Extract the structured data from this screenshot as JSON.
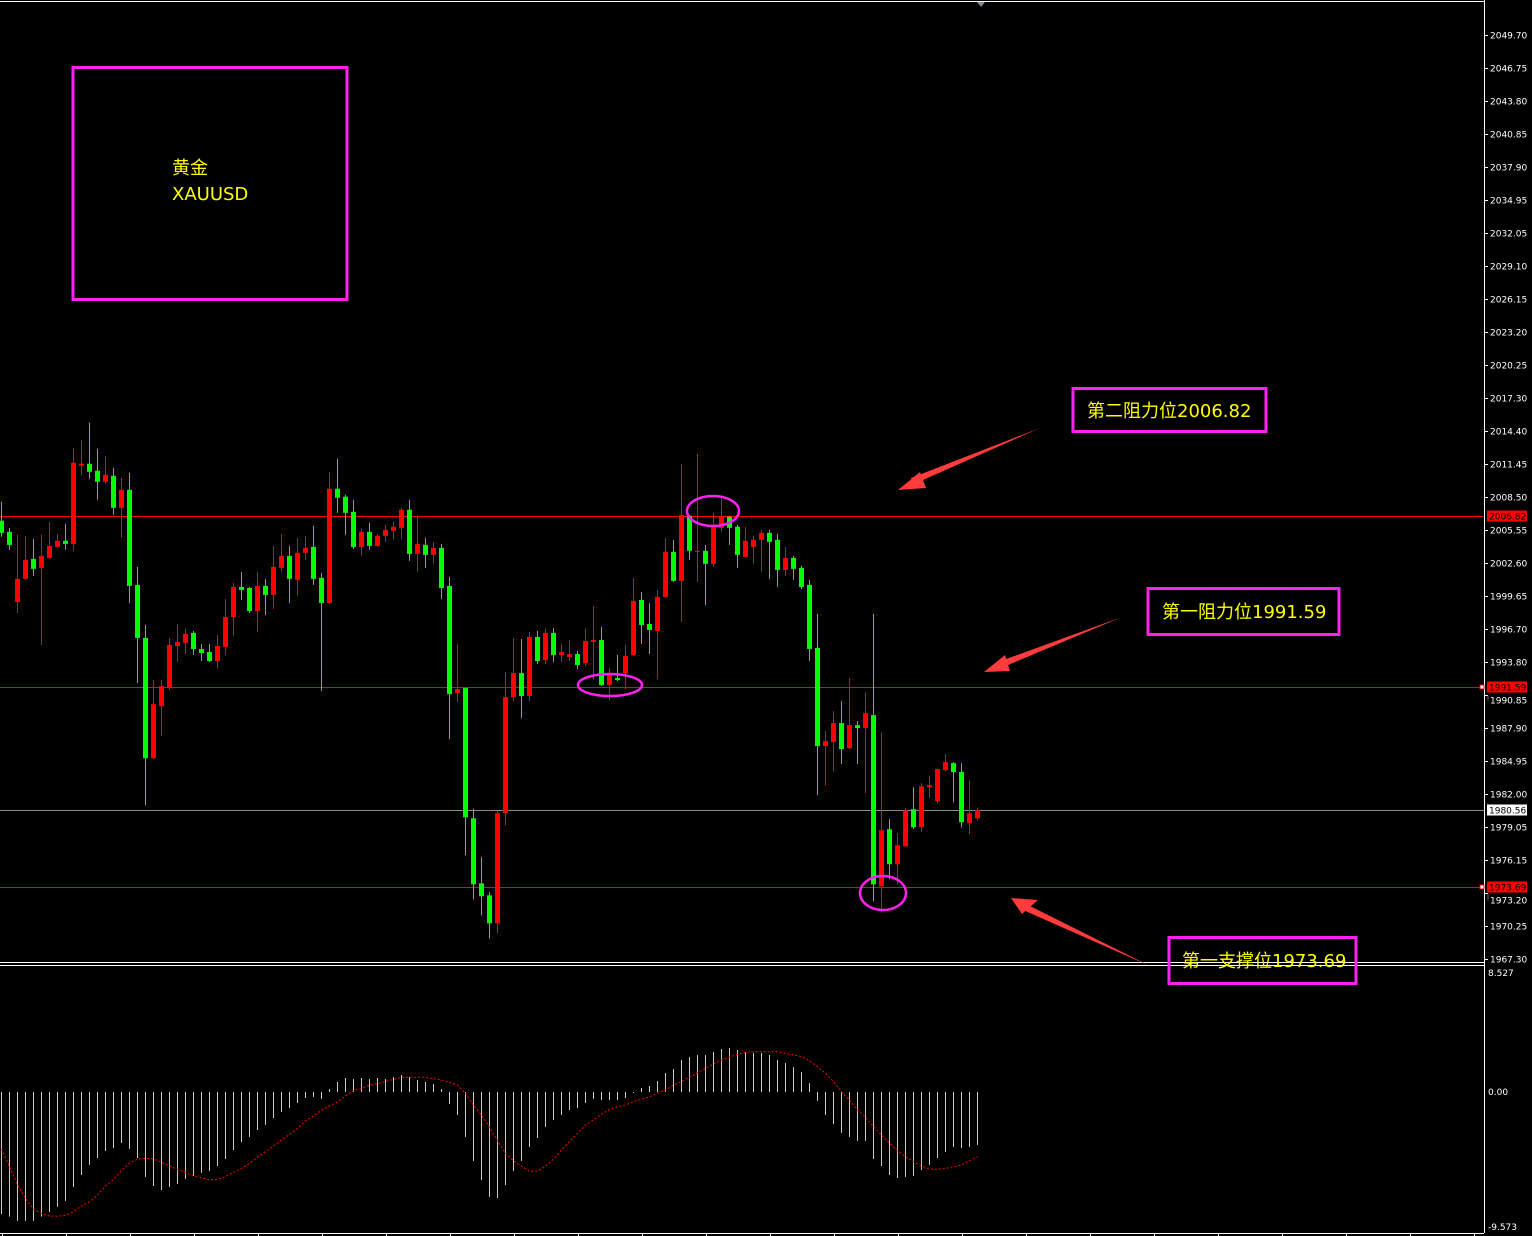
{
  "symbol_box": {
    "line1": "黄金",
    "line2": "XAUUSD"
  },
  "annotations": {
    "resistance2": "第二阻力位2006.82",
    "resistance1": "第一阻力位1991.59",
    "support1": "第一支撑位1973.69"
  },
  "colors": {
    "background": "#000000",
    "bull_candle": "#ff0000",
    "bear_candle": "#00ff00",
    "level_line": "#ff0000",
    "annotation_border": "#ff22ee",
    "annotation_text": "#ffff00",
    "arrow": "#ff3b3b",
    "macd_histogram": "#c8c8c8",
    "macd_signal": "#ff0000"
  },
  "chart_data": {
    "type": "candlestick",
    "symbol": "XAUUSD",
    "ylim": [
      1967.3,
      2049.7
    ],
    "y_ticks": [
      "2049.70",
      "2046.75",
      "2043.80",
      "2040.85",
      "2037.90",
      "2034.95",
      "2032.05",
      "2029.10",
      "2026.15",
      "2023.20",
      "2020.25",
      "2017.30",
      "2014.40",
      "2011.45",
      "2008.50",
      "2005.55",
      "2002.60",
      "1999.65",
      "1996.70",
      "1993.80",
      "1990.85",
      "1987.90",
      "1984.95",
      "1982.00",
      "1979.05",
      "1976.15",
      "1973.20",
      "1970.25",
      "1967.30"
    ],
    "levels": [
      {
        "price": 2006.82,
        "label": "2006.82",
        "kind": "resistance"
      },
      {
        "price": 1991.59,
        "label": "1991.59",
        "kind": "resistance"
      },
      {
        "price": 1980.56,
        "label": "1980.56",
        "kind": "bid"
      },
      {
        "price": 1973.69,
        "label": "1973.69",
        "kind": "support"
      }
    ],
    "ohlc": [
      [
        2006.38,
        2008.07,
        2004.95,
        2005.3
      ],
      [
        2005.39,
        2005.75,
        2003.79,
        2004.23
      ],
      [
        1999.14,
        2005.13,
        1998.16,
        2001.2
      ],
      [
        2001.2,
        2005.04,
        2001.11,
        2002.89
      ],
      [
        2002.98,
        2004.77,
        2001.46,
        2002.09
      ],
      [
        2002.18,
        2005.13,
        1995.3,
        2003.25
      ],
      [
        2003.07,
        2006.29,
        2002.98,
        2004.14
      ],
      [
        2004.05,
        2005.21,
        2003.96,
        2004.59
      ],
      [
        2004.59,
        2006.11,
        2003.79,
        2004.32
      ],
      [
        2004.32,
        2012.89,
        2003.7,
        2011.55
      ],
      [
        2011.29,
        2013.61,
        2010.48,
        2011.47
      ],
      [
        2011.47,
        2015.13,
        2010.13,
        2010.75
      ],
      [
        2010.84,
        2012.81,
        2008.25,
        2009.86
      ],
      [
        2009.86,
        2012.18,
        2009.68,
        2010.48
      ],
      [
        2010.39,
        2011.11,
        2006.91,
        2007.54
      ],
      [
        2007.54,
        2010.22,
        2004.86,
        2009.14
      ],
      [
        2009.14,
        2010.66,
        1999.05,
        2000.57
      ],
      [
        2000.66,
        2002.27,
        1991.91,
        1995.93
      ],
      [
        1995.93,
        1997.09,
        1981.01,
        1985.21
      ],
      [
        1985.21,
        1992.18,
        1985.12,
        1990.03
      ],
      [
        1989.85,
        1992.18,
        1987.18,
        1991.64
      ],
      [
        1991.46,
        1995.93,
        1991.28,
        1995.3
      ],
      [
        1995.21,
        1997.18,
        1993.79,
        1995.57
      ],
      [
        1995.48,
        1996.73,
        1994.5,
        1996.29
      ],
      [
        1996.38,
        1996.55,
        1994.41,
        1994.95
      ],
      [
        1994.95,
        1995.39,
        1993.87,
        1994.59
      ],
      [
        1994.68,
        1995.39,
        1993.78,
        1993.87
      ],
      [
        1993.87,
        1996.2,
        1993.2,
        1995.21
      ],
      [
        1995.12,
        1999.41,
        1994.41,
        1997.8
      ],
      [
        1997.8,
        2000.84,
        1996.11,
        2000.48
      ],
      [
        2000.48,
        2001.82,
        1999.32,
        2000.21
      ],
      [
        2000.39,
        2000.48,
        1998.16,
        1998.34
      ],
      [
        1998.34,
        2001.82,
        1996.46,
        2000.57
      ],
      [
        2000.57,
        2001.2,
        1997.98,
        1999.77
      ],
      [
        1999.77,
        2004.14,
        1998.52,
        2002.27
      ],
      [
        2002.18,
        2005.21,
        2001.82,
        2003.25
      ],
      [
        2003.25,
        2004.14,
        1999.05,
        2001.2
      ],
      [
        2001.11,
        2004.86,
        1999.68,
        2003.52
      ],
      [
        2003.52,
        2005.04,
        2002.89,
        2003.96
      ],
      [
        2004.05,
        2005.93,
        2000.66,
        2001.2
      ],
      [
        2001.29,
        2001.73,
        1991.19,
        1999.05
      ],
      [
        1999.05,
        2010.75,
        1998.96,
        2009.23
      ],
      [
        2009.23,
        2011.91,
        2007.09,
        2008.43
      ],
      [
        2008.52,
        2008.7,
        2005.13,
        2007.09
      ],
      [
        2007.18,
        2008.25,
        2003.87,
        2004.05
      ],
      [
        2004.05,
        2005.66,
        2003.34,
        2005.39
      ],
      [
        2005.39,
        2006.2,
        2003.79,
        2004.14
      ],
      [
        2004.14,
        2005.21,
        2004.05,
        2005.04
      ],
      [
        2005.04,
        2006.02,
        2004.5,
        2005.57
      ],
      [
        2005.48,
        2006.29,
        2004.77,
        2005.84
      ],
      [
        2005.75,
        2007.54,
        2004.77,
        2007.36
      ],
      [
        2007.36,
        2008.25,
        2002.8,
        2003.43
      ],
      [
        2003.43,
        2006.82,
        2001.91,
        2004.32
      ],
      [
        2004.23,
        2004.86,
        2002.18,
        2003.34
      ],
      [
        2003.34,
        2004.5,
        2002.54,
        2003.96
      ],
      [
        2003.96,
        2004.32,
        1999.41,
        2000.39
      ],
      [
        2000.57,
        2001.37,
        1986.91,
        1990.92
      ],
      [
        1991.02,
        1995.39,
        1990.21,
        1991.37
      ],
      [
        1991.46,
        1991.5,
        1976.55,
        1979.94
      ],
      [
        1979.85,
        1980.66,
        1972.62,
        1973.96
      ],
      [
        1974.05,
        1976.37,
        1971.19,
        1972.89
      ],
      [
        1972.98,
        1973.25,
        1969.14,
        1970.48
      ],
      [
        1970.48,
        1980.48,
        1969.58,
        1980.3
      ],
      [
        1980.3,
        1992.89,
        1979.23,
        1990.66
      ],
      [
        1990.66,
        1995.93,
        1990.3,
        1992.8
      ],
      [
        1992.8,
        1995.84,
        1988.78,
        1990.75
      ],
      [
        1990.75,
        1996.46,
        1990.3,
        1996.02
      ],
      [
        1996.02,
        1996.55,
        1993.61,
        1993.87
      ],
      [
        1993.96,
        1996.73,
        1993.61,
        1996.38
      ],
      [
        1996.38,
        1996.82,
        1993.78,
        1994.41
      ],
      [
        1994.41,
        1995.39,
        1993.78,
        1994.68
      ],
      [
        1994.23,
        1995.75,
        1993.87,
        1994.5
      ],
      [
        1994.5,
        1994.77,
        1993.16,
        1993.52
      ],
      [
        1993.7,
        1996.73,
        1993.43,
        1995.66
      ],
      [
        1995.57,
        1998.78,
        1992.18,
        1995.75
      ],
      [
        1995.75,
        1996.91,
        1991.64,
        1991.73
      ],
      [
        1991.73,
        1993.25,
        1990.39,
        1992.71
      ],
      [
        1992.36,
        1994.41,
        1992.09,
        1992.18
      ],
      [
        1992.8,
        1995.3,
        1991.37,
        1994.32
      ],
      [
        1994.41,
        2001.29,
        1994.32,
        1999.23
      ],
      [
        1999.32,
        2000.04,
        1995.39,
        1997.09
      ],
      [
        1997.18,
        1999.05,
        1994.5,
        1996.64
      ],
      [
        1996.55,
        2000.21,
        1992.27,
        1999.59
      ],
      [
        1999.59,
        2004.86,
        1999.5,
        2003.61
      ],
      [
        2003.61,
        2004.68,
        2000.93,
        2001.02
      ],
      [
        2001.02,
        2011.47,
        1997.36,
        2006.91
      ],
      [
        2006.82,
        2006.9,
        2002.89,
        2003.7
      ],
      [
        2003.61,
        2012.36,
        2000.93,
        2003.7
      ],
      [
        2003.7,
        2004.23,
        1998.87,
        2002.54
      ],
      [
        2002.54,
        2007.09,
        2002.27,
        2005.93
      ],
      [
        2005.75,
        2008.43,
        2005.39,
        2006.73
      ],
      [
        2006.73,
        2006.82,
        2004.23,
        2005.75
      ],
      [
        2005.84,
        2006.02,
        2002.18,
        2003.34
      ],
      [
        2003.16,
        2005.84,
        2003.07,
        2004.59
      ],
      [
        2004.05,
        2005.04,
        2002.54,
        2004.68
      ],
      [
        2004.68,
        2005.57,
        2001.82,
        2005.3
      ],
      [
        2005.3,
        2005.57,
        2001.2,
        2004.5
      ],
      [
        2004.68,
        2005.21,
        2000.48,
        2002.0
      ],
      [
        2002.0,
        2004.05,
        2001.46,
        2003.07
      ],
      [
        2003.07,
        2003.25,
        2001.11,
        2002.09
      ],
      [
        2002.18,
        2002.36,
        2000.3,
        2000.48
      ],
      [
        2000.66,
        2001.11,
        1993.87,
        1994.95
      ],
      [
        1995.04,
        1998.07,
        1981.91,
        1986.29
      ],
      [
        1986.29,
        1987.63,
        1982.8,
        1986.73
      ],
      [
        1986.64,
        1989.41,
        1984.05,
        1988.34
      ],
      [
        1988.34,
        1990.3,
        1984.68,
        1986.02
      ],
      [
        1986.11,
        1992.36,
        1986.02,
        1988.16
      ],
      [
        1988.16,
        1988.52,
        1984.68,
        1987.89
      ],
      [
        1987.89,
        1991.02,
        1982.09,
        1989.23
      ],
      [
        1989.05,
        1998.07,
        1972.44,
        1973.96
      ],
      [
        1973.78,
        1987.45,
        1971.46,
        1978.78
      ],
      [
        1978.87,
        1979.76,
        1974.41,
        1975.75
      ],
      [
        1975.75,
        1978.51,
        1973.96,
        1977.44
      ],
      [
        1977.35,
        1980.75,
        1977.35,
        1980.57
      ],
      [
        1980.66,
        1982.62,
        1978.87,
        1979.05
      ],
      [
        1979.05,
        1982.98,
        1978.6,
        1982.71
      ],
      [
        1982.62,
        1983.6,
        1981.64,
        1982.8
      ],
      [
        1981.37,
        1984.23,
        1981.19,
        1984.23
      ],
      [
        1984.15,
        1985.57,
        1984.05,
        1984.86
      ],
      [
        1984.77,
        1984.86,
        1981.28,
        1983.98
      ],
      [
        1983.98,
        1984.77,
        1979.05,
        1979.5
      ],
      [
        1979.41,
        1983.16,
        1978.42,
        1980.3
      ],
      [
        1979.85,
        1980.75,
        1979.67,
        1980.57
      ]
    ],
    "macd": {
      "ylim": [
        -9.573,
        8.527
      ],
      "axis_labels": {
        "top": "8.527",
        "zero": "0.00",
        "bottom": "-9.573"
      },
      "histogram": [
        -8.63,
        -8.81,
        -9.12,
        -9.12,
        -9.12,
        -8.81,
        -8.48,
        -8.11,
        -7.71,
        -6.72,
        -5.87,
        -5.16,
        -4.67,
        -4.17,
        -3.96,
        -3.61,
        -4.03,
        -4.67,
        -6.01,
        -6.65,
        -6.93,
        -6.72,
        -6.5,
        -6.15,
        -5.94,
        -5.73,
        -5.59,
        -5.23,
        -4.74,
        -4.1,
        -3.54,
        -3.18,
        -2.69,
        -2.33,
        -1.84,
        -1.41,
        -1.13,
        -0.78,
        -0.42,
        -0.35,
        -0.49,
        0.21,
        0.71,
        0.99,
        0.92,
        0.99,
        0.92,
        0.99,
        0.92,
        1.06,
        1.2,
        1.06,
        0.85,
        0.71,
        0.57,
        0.21,
        -0.85,
        -1.63,
        -3.18,
        -4.88,
        -6.22,
        -7.42,
        -7.49,
        -6.58,
        -5.59,
        -4.88,
        -3.89,
        -3.25,
        -2.47,
        -1.98,
        -1.63,
        -1.27,
        -1.13,
        -0.78,
        -0.49,
        -0.57,
        -0.57,
        -0.57,
        -0.42,
        -0.07,
        0.28,
        0.42,
        0.78,
        1.34,
        1.63,
        2.26,
        2.47,
        2.62,
        2.62,
        2.83,
        3.04,
        3.11,
        2.97,
        2.83,
        2.76,
        2.76,
        2.62,
        2.26,
        2.05,
        1.77,
        1.41,
        0.64,
        -0.64,
        -1.63,
        -2.26,
        -2.9,
        -3.18,
        -3.46,
        -3.46,
        -4.74,
        -5.23,
        -5.87,
        -6.08,
        -6.01,
        -5.94,
        -5.51,
        -5.16,
        -4.67,
        -4.24,
        -3.89,
        -3.96,
        -3.89,
        -3.75
      ],
      "signal": [
        -4.03,
        -5.28,
        -6.58,
        -7.52,
        -8.3,
        -8.58,
        -8.77,
        -8.79,
        -8.72,
        -8.46,
        -8.04,
        -7.76,
        -7.28,
        -6.65,
        -6.18,
        -5.56,
        -5.04,
        -4.74,
        -4.69,
        -4.74,
        -4.97,
        -5.23,
        -5.47,
        -5.7,
        -5.94,
        -6.06,
        -6.22,
        -6.18,
        -5.99,
        -5.68,
        -5.4,
        -5.04,
        -4.62,
        -4.22,
        -3.82,
        -3.39,
        -2.99,
        -2.57,
        -2.03,
        -1.7,
        -1.27,
        -0.99,
        -0.68,
        -0.26,
        0.09,
        0.26,
        0.49,
        0.59,
        0.75,
        0.89,
        1.04,
        1.04,
        1.04,
        1.04,
        0.94,
        0.85,
        0.68,
        0.49,
        -0.1,
        -0.94,
        -1.63,
        -2.5,
        -3.44,
        -4.34,
        -4.86,
        -5.23,
        -5.59,
        -5.59,
        -5.23,
        -4.76,
        -4.1,
        -3.51,
        -2.92,
        -2.33,
        -1.98,
        -1.56,
        -1.23,
        -1.04,
        -0.92,
        -0.68,
        -0.52,
        -0.33,
        -0.09,
        0.14,
        0.49,
        0.75,
        1.04,
        1.37,
        1.67,
        1.98,
        2.26,
        2.47,
        2.66,
        2.8,
        2.85,
        2.85,
        2.85,
        2.85,
        2.73,
        2.62,
        2.5,
        2.21,
        1.79,
        1.32,
        0.73,
        0.02,
        -0.57,
        -1.27,
        -1.79,
        -2.45,
        -3.04,
        -3.63,
        -4.15,
        -4.57,
        -4.93,
        -5.23,
        -5.45,
        -5.47,
        -5.4,
        -5.28,
        -5.16,
        -4.86,
        -4.57
      ]
    }
  }
}
